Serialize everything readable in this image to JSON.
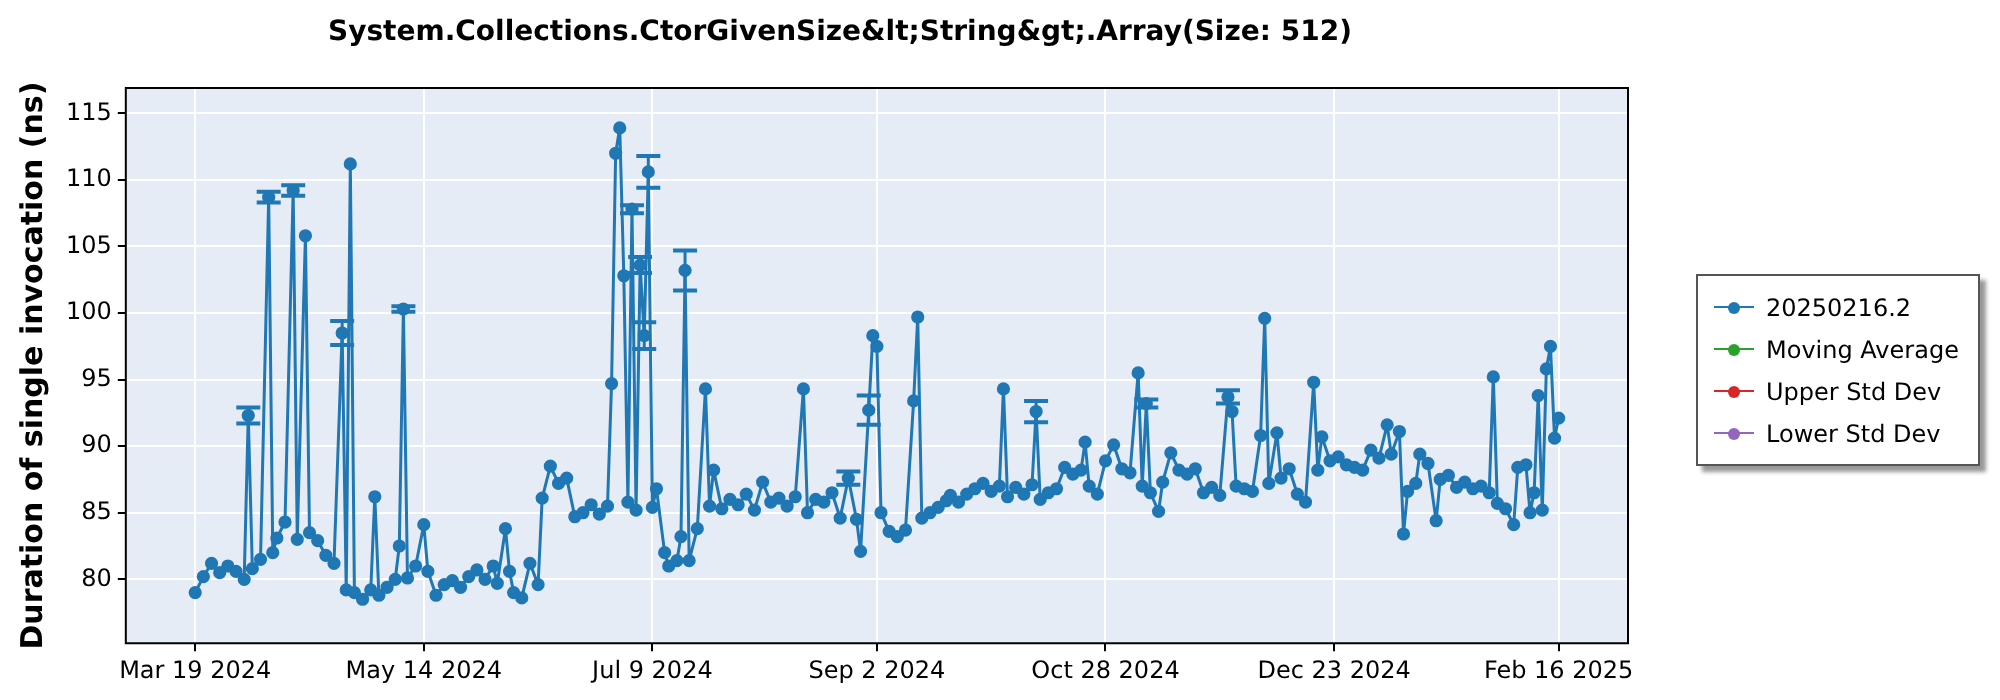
{
  "chart_data": {
    "type": "line",
    "title": "System.Collections.CtorGivenSize&lt;String&gt;.Array(Size: 512)",
    "ylabel": "Duration of single invocation (ns)",
    "xlim": [
      "2024-03-02",
      "2025-03-05"
    ],
    "xticks": [
      {
        "value": "2024-03-19",
        "label": "Mar 19 2024"
      },
      {
        "value": "2024-05-14",
        "label": "May 14 2024"
      },
      {
        "value": "2024-07-09",
        "label": "Jul 9 2024"
      },
      {
        "value": "2024-09-02",
        "label": "Sep 2 2024"
      },
      {
        "value": "2024-10-28",
        "label": "Oct 28 2024"
      },
      {
        "value": "2024-12-23",
        "label": "Dec 23 2024"
      },
      {
        "value": "2025-02-16",
        "label": "Feb 16 2025"
      }
    ],
    "ylim": [
      75.2,
      116.9
    ],
    "yticks": [
      80,
      85,
      90,
      95,
      100,
      105,
      110,
      115
    ],
    "grid": true,
    "legend": "right",
    "marker": "circle",
    "line_style": "solid",
    "series": [
      {
        "name": "20250216.2",
        "color": "#1f77b4",
        "x": [
          "2024-03-19",
          "2024-03-21",
          "2024-03-23",
          "2024-03-25",
          "2024-03-27",
          "2024-03-29",
          "2024-03-31",
          "2024-04-01",
          "2024-04-02",
          "2024-04-04",
          "2024-04-06",
          "2024-04-07",
          "2024-04-08",
          "2024-04-10",
          "2024-04-12",
          "2024-04-13",
          "2024-04-15",
          "2024-04-16",
          "2024-04-18",
          "2024-04-20",
          "2024-04-22",
          "2024-04-24",
          "2024-04-25",
          "2024-04-26",
          "2024-04-27",
          "2024-04-29",
          "2024-05-01",
          "2024-05-02",
          "2024-05-03",
          "2024-05-05",
          "2024-05-07",
          "2024-05-08",
          "2024-05-09",
          "2024-05-10",
          "2024-05-12",
          "2024-05-14",
          "2024-05-15",
          "2024-05-17",
          "2024-05-19",
          "2024-05-21",
          "2024-05-23",
          "2024-05-25",
          "2024-05-27",
          "2024-05-29",
          "2024-05-31",
          "2024-06-01",
          "2024-06-03",
          "2024-06-04",
          "2024-06-05",
          "2024-06-07",
          "2024-06-09",
          "2024-06-11",
          "2024-06-12",
          "2024-06-14",
          "2024-06-16",
          "2024-06-18",
          "2024-06-20",
          "2024-06-22",
          "2024-06-24",
          "2024-06-26",
          "2024-06-28",
          "2024-06-29",
          "2024-06-30",
          "2024-07-01",
          "2024-07-02",
          "2024-07-03",
          "2024-07-04",
          "2024-07-05",
          "2024-07-06",
          "2024-07-07",
          "2024-07-08",
          "2024-07-09",
          "2024-07-10",
          "2024-07-12",
          "2024-07-13",
          "2024-07-15",
          "2024-07-16",
          "2024-07-17",
          "2024-07-18",
          "2024-07-20",
          "2024-07-22",
          "2024-07-23",
          "2024-07-24",
          "2024-07-26",
          "2024-07-28",
          "2024-07-30",
          "2024-08-01",
          "2024-08-03",
          "2024-08-05",
          "2024-08-07",
          "2024-08-09",
          "2024-08-11",
          "2024-08-13",
          "2024-08-15",
          "2024-08-16",
          "2024-08-18",
          "2024-08-20",
          "2024-08-22",
          "2024-08-24",
          "2024-08-26",
          "2024-08-28",
          "2024-08-29",
          "2024-08-31",
          "2024-09-01",
          "2024-09-02",
          "2024-09-03",
          "2024-09-05",
          "2024-09-07",
          "2024-09-09",
          "2024-09-11",
          "2024-09-12",
          "2024-09-13",
          "2024-09-15",
          "2024-09-17",
          "2024-09-19",
          "2024-09-20",
          "2024-09-22",
          "2024-09-24",
          "2024-09-26",
          "2024-09-28",
          "2024-09-30",
          "2024-10-02",
          "2024-10-03",
          "2024-10-04",
          "2024-10-06",
          "2024-10-08",
          "2024-10-10",
          "2024-10-11",
          "2024-10-12",
          "2024-10-14",
          "2024-10-16",
          "2024-10-18",
          "2024-10-20",
          "2024-10-22",
          "2024-10-23",
          "2024-10-24",
          "2024-10-26",
          "2024-10-28",
          "2024-10-30",
          "2024-11-01",
          "2024-11-03",
          "2024-11-05",
          "2024-11-06",
          "2024-11-07",
          "2024-11-08",
          "2024-11-10",
          "2024-11-11",
          "2024-11-13",
          "2024-11-15",
          "2024-11-17",
          "2024-11-19",
          "2024-11-21",
          "2024-11-23",
          "2024-11-25",
          "2024-11-27",
          "2024-11-28",
          "2024-11-29",
          "2024-12-01",
          "2024-12-03",
          "2024-12-05",
          "2024-12-06",
          "2024-12-07",
          "2024-12-09",
          "2024-12-10",
          "2024-12-12",
          "2024-12-14",
          "2024-12-16",
          "2024-12-18",
          "2024-12-19",
          "2024-12-20",
          "2024-12-22",
          "2024-12-24",
          "2024-12-26",
          "2024-12-28",
          "2024-12-30",
          "2025-01-01",
          "2025-01-03",
          "2025-01-05",
          "2025-01-06",
          "2025-01-08",
          "2025-01-09",
          "2025-01-10",
          "2025-01-12",
          "2025-01-13",
          "2025-01-15",
          "2025-01-17",
          "2025-01-18",
          "2025-01-20",
          "2025-01-22",
          "2025-01-24",
          "2025-01-26",
          "2025-01-28",
          "2025-01-30",
          "2025-01-31",
          "2025-02-01",
          "2025-02-03",
          "2025-02-05",
          "2025-02-06",
          "2025-02-08",
          "2025-02-09",
          "2025-02-10",
          "2025-02-11",
          "2025-02-12",
          "2025-02-13",
          "2025-02-14",
          "2025-02-15",
          "2025-02-16"
        ],
        "values": [
          79.0,
          80.2,
          81.2,
          80.5,
          81.0,
          80.6,
          80.0,
          92.3,
          80.8,
          81.5,
          108.7,
          82.0,
          83.1,
          84.3,
          109.2,
          83.0,
          105.8,
          83.5,
          82.9,
          81.8,
          81.2,
          98.5,
          79.2,
          111.2,
          79.0,
          78.5,
          79.2,
          86.2,
          78.8,
          79.4,
          80.0,
          82.5,
          100.3,
          80.1,
          81.0,
          84.1,
          80.6,
          78.8,
          79.6,
          79.9,
          79.4,
          80.2,
          80.7,
          80.0,
          81.0,
          79.7,
          83.8,
          80.6,
          79.0,
          78.6,
          81.2,
          79.6,
          86.1,
          88.5,
          87.2,
          87.6,
          84.7,
          85.0,
          85.6,
          84.9,
          85.5,
          94.7,
          112.0,
          113.9,
          102.8,
          85.8,
          107.8,
          85.2,
          103.6,
          98.3,
          110.6,
          85.4,
          86.8,
          82.0,
          81.0,
          81.4,
          83.2,
          103.2,
          81.4,
          83.8,
          94.3,
          85.5,
          88.2,
          85.3,
          86.0,
          85.6,
          86.4,
          85.2,
          87.3,
          85.8,
          86.1,
          85.5,
          86.2,
          94.3,
          85.0,
          86.0,
          85.8,
          86.5,
          84.6,
          87.6,
          84.5,
          82.1,
          92.7,
          98.3,
          97.5,
          85.0,
          83.6,
          83.2,
          83.7,
          93.4,
          99.7,
          84.6,
          85.0,
          85.4,
          85.9,
          86.3,
          85.8,
          86.4,
          86.8,
          87.2,
          86.6,
          87.0,
          94.3,
          86.2,
          86.9,
          86.4,
          87.1,
          92.6,
          86.0,
          86.5,
          86.8,
          88.4,
          87.9,
          88.2,
          90.3,
          87.0,
          86.4,
          88.9,
          90.1,
          88.3,
          88.0,
          95.5,
          87.0,
          93.2,
          86.5,
          85.1,
          87.3,
          89.5,
          88.2,
          87.9,
          88.3,
          86.5,
          86.9,
          86.3,
          93.7,
          92.6,
          87.0,
          86.8,
          86.6,
          90.8,
          99.6,
          87.2,
          91.0,
          87.6,
          88.3,
          86.4,
          85.8,
          94.8,
          88.2,
          90.7,
          88.9,
          89.2,
          88.6,
          88.4,
          88.2,
          89.7,
          89.1,
          91.6,
          89.4,
          91.1,
          83.4,
          86.6,
          87.2,
          89.4,
          88.7,
          84.4,
          87.5,
          87.8,
          86.9,
          87.3,
          86.8,
          87.0,
          86.5,
          95.2,
          85.7,
          85.3,
          84.1,
          88.4,
          88.6,
          85.0,
          86.5,
          93.8,
          85.2,
          95.8,
          97.5,
          90.6,
          92.1
        ],
        "errors": [
          null,
          null,
          null,
          null,
          null,
          null,
          null,
          0.6,
          null,
          null,
          0.4,
          null,
          null,
          null,
          0.4,
          null,
          null,
          null,
          null,
          null,
          null,
          0.9,
          null,
          null,
          null,
          null,
          null,
          null,
          null,
          null,
          null,
          null,
          0.2,
          null,
          null,
          null,
          null,
          null,
          null,
          null,
          null,
          null,
          null,
          null,
          null,
          null,
          null,
          null,
          null,
          null,
          null,
          null,
          null,
          null,
          null,
          null,
          null,
          null,
          null,
          null,
          null,
          null,
          null,
          null,
          null,
          null,
          0.3,
          null,
          0.6,
          1.0,
          1.2,
          null,
          null,
          null,
          null,
          null,
          null,
          1.5,
          null,
          null,
          null,
          null,
          null,
          null,
          null,
          null,
          null,
          null,
          null,
          null,
          null,
          null,
          null,
          null,
          null,
          null,
          null,
          null,
          null,
          0.5,
          null,
          null,
          1.1,
          null,
          null,
          null,
          null,
          null,
          null,
          null,
          null,
          null,
          null,
          null,
          null,
          null,
          null,
          null,
          null,
          null,
          null,
          null,
          null,
          null,
          null,
          null,
          null,
          0.8,
          null,
          null,
          null,
          null,
          null,
          null,
          null,
          null,
          null,
          null,
          null,
          null,
          null,
          null,
          null,
          0.3,
          null,
          null,
          null,
          null,
          null,
          null,
          null,
          null,
          null,
          null,
          0.5,
          null,
          null,
          null,
          null,
          null,
          null,
          null,
          null,
          null,
          null,
          null,
          null,
          null,
          null,
          null,
          null,
          null,
          null,
          null,
          null,
          null,
          null,
          null,
          null,
          null,
          null,
          null,
          null,
          null,
          null,
          null,
          null,
          null,
          null,
          null,
          null,
          null,
          null,
          null,
          null,
          null,
          null,
          null,
          null,
          null,
          null,
          null,
          null,
          null,
          null,
          null,
          null
        ]
      },
      {
        "name": "Moving Average",
        "color": "#2ca02c"
      },
      {
        "name": "Upper Std Dev",
        "color": "#d62728"
      },
      {
        "name": "Lower Std Dev",
        "color": "#9467bd"
      }
    ]
  }
}
